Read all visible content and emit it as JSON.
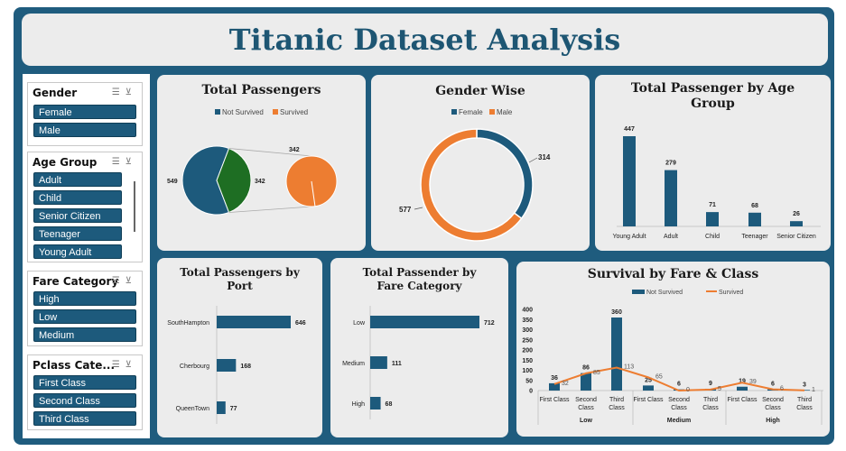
{
  "header": {
    "title": "Titanic Dataset Analysis"
  },
  "slicers": [
    {
      "title": "Gender",
      "items": [
        "Female",
        "Male"
      ]
    },
    {
      "title": "Age Group",
      "items": [
        "Adult",
        "Child",
        "Senior Citizen",
        "Teenager",
        "Young Adult"
      ]
    },
    {
      "title": "Fare Category",
      "items": [
        "High",
        "Low",
        "Medium"
      ]
    },
    {
      "title": "Pclass Cate...",
      "items": [
        "First Class",
        "Second Class",
        "Third Class"
      ]
    }
  ],
  "colors": {
    "blue": "#1d5a7c",
    "orange": "#ed7d31",
    "green": "#1e6e23"
  },
  "chart_data": [
    {
      "type": "pie",
      "title": "Total Passengers",
      "legend": [
        "Not Survived",
        "Survived"
      ],
      "values": [
        549,
        342
      ],
      "labels": [
        "549",
        "342"
      ],
      "subpie_label": "342",
      "subpie_value_label": "342"
    },
    {
      "type": "pie",
      "title": "Gender Wise",
      "legend": [
        "Female",
        "Male"
      ],
      "values": [
        314,
        577
      ],
      "labels": [
        "314",
        "577"
      ]
    },
    {
      "type": "bar",
      "title": "Total Passenger by Age Group",
      "categories": [
        "Young Adult",
        "Adult",
        "Child",
        "Teenager",
        "Senior Citizen"
      ],
      "values": [
        447,
        279,
        71,
        68,
        26
      ]
    },
    {
      "type": "bar",
      "title": "Total Passengers by Port",
      "orientation": "horizontal",
      "categories": [
        "SouthHampton",
        "Cherbourg",
        "QueenTown"
      ],
      "values": [
        646,
        168,
        77
      ]
    },
    {
      "type": "bar",
      "title": "Total Passender by Fare Category",
      "orientation": "horizontal",
      "categories": [
        "Low",
        "Medium",
        "High"
      ],
      "values": [
        712,
        111,
        68
      ]
    },
    {
      "type": "bar",
      "title": "Survival by Fare & Class",
      "legend": [
        "Not Survived",
        "Survived"
      ],
      "groups": [
        "Low",
        "Medium",
        "High"
      ],
      "categories": [
        "First Class",
        "Second Class",
        "Third Class",
        "First Class",
        "Second Class",
        "Third Class",
        "First Class",
        "Second Class",
        "Third Class"
      ],
      "series": [
        {
          "name": "Not Survived",
          "values": [
            36,
            86,
            360,
            25,
            6,
            9,
            19,
            6,
            3
          ]
        },
        {
          "name": "Survived",
          "values": [
            32,
            85,
            113,
            65,
            0,
            5,
            39,
            6,
            1
          ]
        }
      ],
      "yticks": [
        "0",
        "50",
        "100",
        "150",
        "200",
        "250",
        "300",
        "350",
        "400"
      ],
      "ylim": [
        0,
        400
      ]
    }
  ]
}
